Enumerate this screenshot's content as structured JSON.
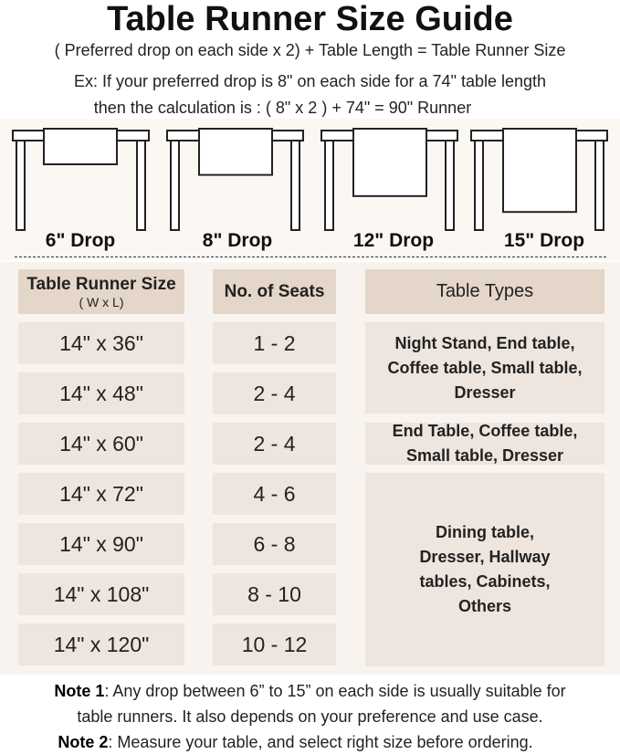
{
  "title": "Table Runner Size Guide",
  "intro": {
    "formula": "( Preferred drop on each side x 2) + Table Length = Table Runner Size",
    "example_1": "Ex: If your preferred drop is 8\" on each side for a 74\" table length",
    "example_2": "then the calculation is : ( 8\" x 2 ) + 74\" = 90\" Runner"
  },
  "drops": [
    {
      "label": "6\" Drop",
      "inches": 6
    },
    {
      "label": "8\" Drop",
      "inches": 8
    },
    {
      "label": "12\" Drop",
      "inches": 12
    },
    {
      "label": "15\" Drop",
      "inches": 15
    }
  ],
  "table": {
    "headers": {
      "size": "Table Runner Size",
      "size_sub": "( W x L)",
      "seats": "No. of Seats",
      "types": "Table Types"
    },
    "rows": [
      {
        "size": "14\" x 36\"",
        "seats": "1 - 2"
      },
      {
        "size": "14\" x 48\"",
        "seats": "2 - 4"
      },
      {
        "size": "14\" x 60\"",
        "seats": "2 - 4"
      },
      {
        "size": "14\" x 72\"",
        "seats": "4 - 6"
      },
      {
        "size": "14\" x 90\"",
        "seats": "6 - 8"
      },
      {
        "size": "14\" x 108\"",
        "seats": "8 - 10"
      },
      {
        "size": "14\" x 120\"",
        "seats": "10 - 12"
      }
    ],
    "types": [
      "Night Stand, End table, Coffee table, Small table, Dresser",
      "End Table, Coffee table, Small table, Dresser",
      "Dining table, Dresser, Hallway tables, Cabinets, Others"
    ]
  },
  "notes": {
    "note1_label": "Note 1",
    "note1_text": ": Any drop between 6” to 15” on each side is usually suitable for",
    "note1_text2": "table runners. It also depends on your preference and use case.",
    "note2_label": "Note 2",
    "note2_text": ": Measure your table, and select right size before ordering."
  },
  "colors": {
    "header_cell": "#e4d6c8",
    "body_cell": "#eee5df",
    "panel": "#f8f3ee"
  }
}
